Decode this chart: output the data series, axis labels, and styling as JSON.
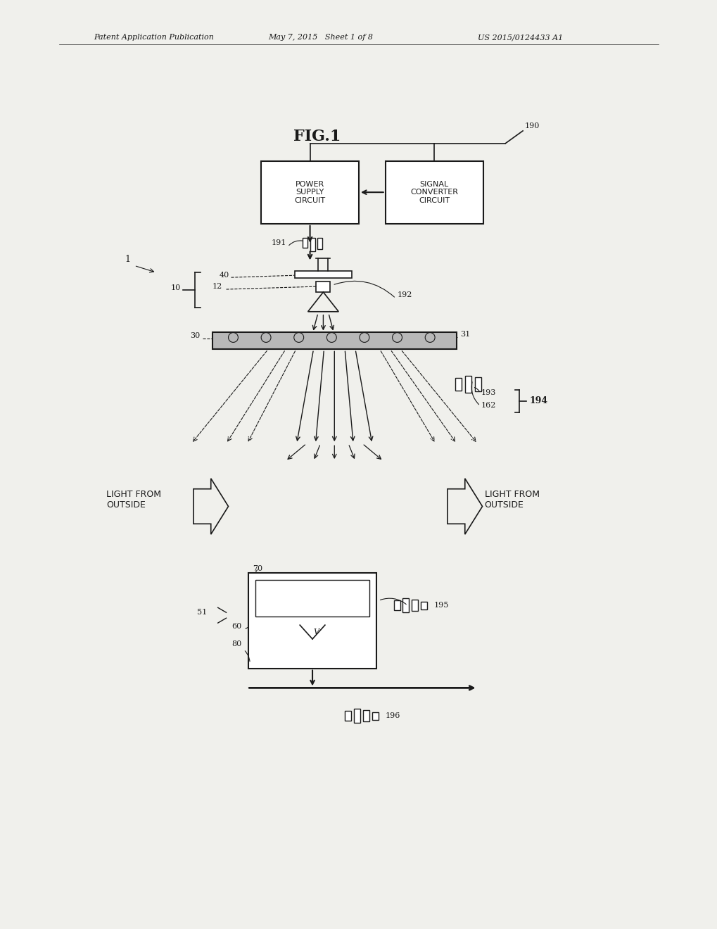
{
  "bg_color": "#f0f0ec",
  "line_color": "#1a1a1a",
  "header_text_left": "Patent Application Publication",
  "header_text_mid": "May 7, 2015   Sheet 1 of 8",
  "header_text_right": "US 2015/0124433 A1",
  "fig_title": "FIG.1",
  "box1_label": "POWER\nSUPPLY\nCIRCUIT",
  "box2_label": "SIGNAL\nCONVERTER\nCIRCUIT"
}
